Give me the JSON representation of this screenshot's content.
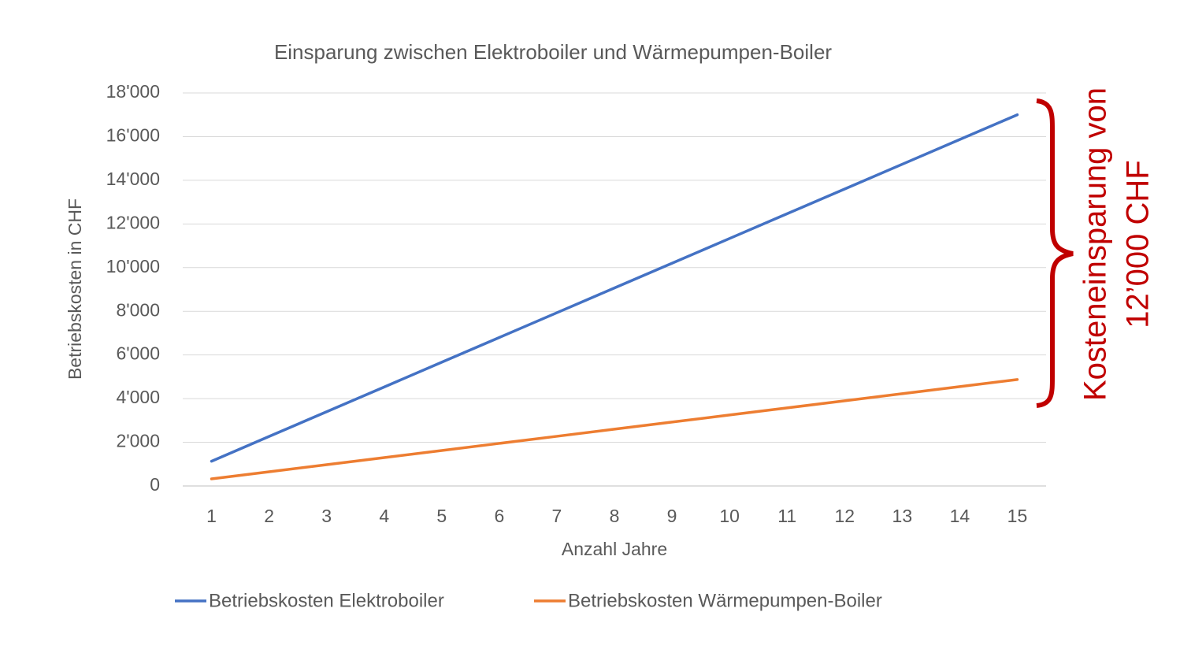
{
  "chart_data": {
    "type": "line",
    "title": "Einsparung zwischen Elektroboiler und Wärmepumpen-Boiler",
    "x_label": "Anzahl Jahre",
    "y_label": "Betriebskosten in CHF",
    "categories": [
      1,
      2,
      3,
      4,
      5,
      6,
      7,
      8,
      9,
      10,
      11,
      12,
      13,
      14,
      15
    ],
    "series": [
      {
        "name": "Betriebskosten Elektroboiler",
        "color": "#4472c4",
        "values": [
          1133,
          2267,
          3400,
          4533,
          5667,
          6800,
          7933,
          9067,
          10200,
          11333,
          12467,
          13600,
          14733,
          15867,
          17000
        ]
      },
      {
        "name": "Betriebskosten Wärmepumpen-Boiler",
        "color": "#ed7d31",
        "values": [
          325,
          650,
          975,
          1300,
          1625,
          1950,
          2275,
          2600,
          2925,
          3250,
          3575,
          3900,
          4225,
          4550,
          4875
        ]
      }
    ],
    "ylim": [
      0,
      18000
    ],
    "yticks": [
      0,
      {
        "value": 2000,
        "label": "2'000"
      },
      {
        "value": 4000,
        "label": "4'000"
      },
      {
        "value": 6000,
        "label": "6'000"
      },
      {
        "value": 8000,
        "label": "8'000"
      },
      {
        "value": 10000,
        "label": "10'000"
      },
      {
        "value": 12000,
        "label": "12'000"
      },
      {
        "value": 14000,
        "label": "14'000"
      },
      {
        "value": 16000,
        "label": "16'000"
      },
      {
        "value": 18000,
        "label": "18'000"
      }
    ],
    "grid": true,
    "legend": "bottom",
    "annotation": {
      "lines": [
        "Kosteneinsparung von",
        "12’000 CHF"
      ],
      "color": "#c00000"
    }
  }
}
